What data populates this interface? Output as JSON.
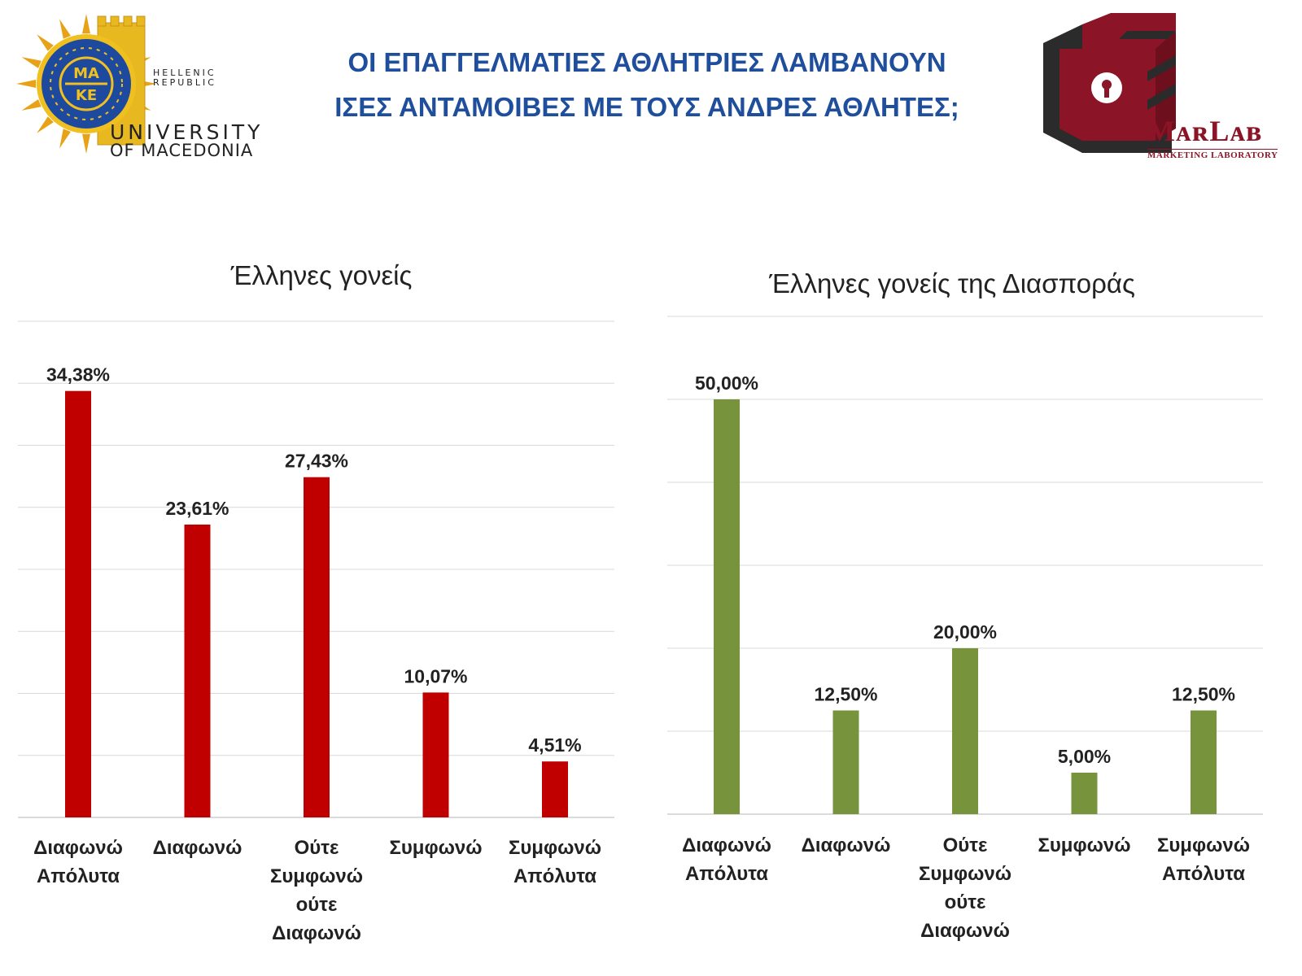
{
  "header": {
    "title_line1": "ΟΙ ΕΠΑΓΓΕΛΜΑΤΙΕΣ ΑΘΛΗΤΡΙΕΣ ΛΑΜΒΑΝΟΥΝ",
    "title_line2": "ΙΣΕΣ ΑΝΤΑΜΟΙΒΕΣ ΜΕ ΤΟΥΣ ΑΝΔΡΕΣ ΑΘΛΗΤΕΣ;",
    "title_color": "#1f4e9c"
  },
  "logos": {
    "university": {
      "hellenic": "HELLENIC",
      "republic": "REPUBLIC",
      "university": "UNIVERSITY",
      "macedonia": "OF MACEDONIA",
      "seal_top": "ΜΑ",
      "seal_bottom": "ΚΕ"
    },
    "marlab": {
      "name": "MᴀʀLᴀʙ",
      "subtitle": "MARKETING LABORATORY",
      "color": "#8b1526"
    }
  },
  "chart_data": [
    {
      "type": "bar",
      "title": "Έλληνες γονείς",
      "categories": [
        [
          "Διαφωνώ",
          "Απόλυτα"
        ],
        [
          "Διαφωνώ"
        ],
        [
          "Ούτε",
          "Συμφωνώ",
          "ούτε",
          "Διαφωνώ"
        ],
        [
          "Συμφωνώ"
        ],
        [
          "Συμφωνώ",
          "Απόλυτα"
        ]
      ],
      "values": [
        34.38,
        23.61,
        27.43,
        10.07,
        4.51
      ],
      "labels": [
        "34,38%",
        "23,61%",
        "27,43%",
        "10,07%",
        "4,51%"
      ],
      "ylim": [
        0,
        40
      ],
      "grid": true,
      "color": "#c00000"
    },
    {
      "type": "bar",
      "title": "Έλληνες γονείς της Διασποράς",
      "categories": [
        [
          "Διαφωνώ",
          "Απόλυτα"
        ],
        [
          "Διαφωνώ"
        ],
        [
          "Ούτε",
          "Συμφωνώ",
          "ούτε",
          "Διαφωνώ"
        ],
        [
          "Συμφωνώ"
        ],
        [
          "Συμφωνώ",
          "Απόλυτα"
        ]
      ],
      "values": [
        50.0,
        12.5,
        20.0,
        5.0,
        12.5
      ],
      "labels": [
        "50,00%",
        "12,50%",
        "20,00%",
        "5,00%",
        "12,50%"
      ],
      "ylim": [
        0,
        60
      ],
      "grid": true,
      "color": "#77933c"
    }
  ]
}
